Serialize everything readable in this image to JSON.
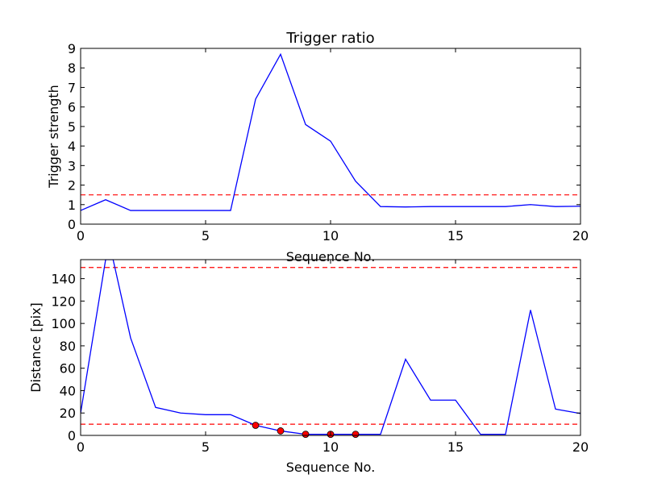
{
  "chart_data": [
    {
      "type": "line",
      "title": "Trigger ratio",
      "xlabel": "Sequence No.",
      "ylabel": "Trigger strength",
      "xlim": [
        0,
        20
      ],
      "ylim": [
        0,
        9
      ],
      "xticks": [
        "0",
        "5",
        "10",
        "15",
        "20"
      ],
      "yticks": [
        "0",
        "1",
        "2",
        "3",
        "4",
        "5",
        "6",
        "7",
        "8",
        "9"
      ],
      "grid": false,
      "series": [
        {
          "color": "#0000ff",
          "x": [
            0,
            1,
            2,
            3,
            4,
            5,
            6,
            7,
            8,
            9,
            10,
            11,
            12,
            13,
            14,
            15,
            16,
            17,
            18,
            19,
            20
          ],
          "y": [
            0.7,
            1.25,
            0.7,
            0.7,
            0.7,
            0.7,
            0.7,
            6.4,
            8.7,
            5.1,
            4.25,
            2.2,
            0.9,
            0.88,
            0.9,
            0.9,
            0.9,
            0.9,
            1.0,
            0.9,
            0.92
          ]
        }
      ],
      "reference_lines": [
        {
          "y": 1.5,
          "color": "#ff0000",
          "style": "dashed"
        }
      ]
    },
    {
      "type": "line",
      "title": "",
      "xlabel": "Sequence No.",
      "ylabel": "Distance [pix]",
      "xlim": [
        0,
        20
      ],
      "ylim": [
        0,
        157
      ],
      "xticks": [
        "0",
        "5",
        "10",
        "15",
        "20"
      ],
      "yticks": [
        "0",
        "20",
        "40",
        "60",
        "80",
        "100",
        "120",
        "140"
      ],
      "grid": false,
      "series": [
        {
          "color": "#0000ff",
          "x": [
            0,
            1,
            1.3,
            2,
            3,
            4,
            5,
            6,
            7,
            8,
            9,
            10,
            11,
            12,
            13,
            14,
            15,
            16,
            17,
            18,
            19,
            20
          ],
          "y": [
            20,
            157,
            157,
            87,
            25,
            20,
            18.5,
            18.5,
            9,
            4,
            1,
            1,
            1,
            1,
            68,
            31.5,
            31.5,
            1,
            1,
            112,
            23.5,
            19.5
          ]
        }
      ],
      "markers": {
        "color": "#ff0000",
        "x": [
          7,
          8,
          9,
          10,
          11
        ],
        "y": [
          9,
          4,
          1,
          1,
          1
        ]
      },
      "reference_lines": [
        {
          "y": 150,
          "color": "#ff0000",
          "style": "dashed"
        },
        {
          "y": 10,
          "color": "#ff0000",
          "style": "dashed"
        }
      ]
    }
  ]
}
